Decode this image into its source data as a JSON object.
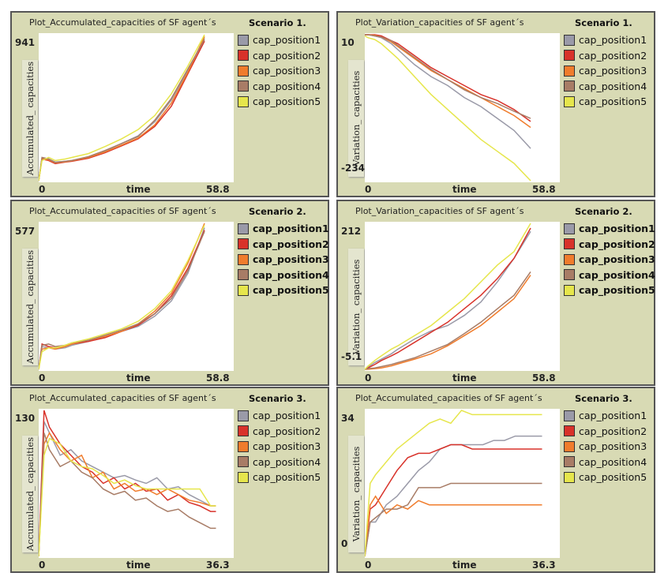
{
  "colors": {
    "cap_position1": "#9a9aa8",
    "cap_position2": "#d8322a",
    "cap_position3": "#f07c2c",
    "cap_position4": "#a87c66",
    "cap_position5": "#e6e64c"
  },
  "chart_data": [
    {
      "type": "line",
      "title": "Plot_Accumulated_capacities of SF agent´s",
      "scenario": "Scenario 1.",
      "xlabel": "time",
      "ylabel": "Accumulated_ capacities",
      "xlim": [
        0,
        58.8
      ],
      "ylim": [
        0,
        941
      ],
      "x_tick_labels": [
        "0",
        "58.8"
      ],
      "y_tick_labels": [
        "941",
        ""
      ],
      "x": [
        0,
        1,
        3,
        5,
        8,
        10,
        15,
        20,
        25,
        30,
        35,
        40,
        45,
        50
      ],
      "series": [
        {
          "name": "cap_position1",
          "values": [
            0,
            150,
            140,
            120,
            125,
            130,
            150,
            190,
            240,
            290,
            380,
            520,
            710,
            920
          ]
        },
        {
          "name": "cap_position2",
          "values": [
            0,
            140,
            130,
            110,
            120,
            125,
            145,
            180,
            225,
            270,
            350,
            480,
            690,
            900
          ]
        },
        {
          "name": "cap_position3",
          "values": [
            0,
            145,
            135,
            115,
            122,
            128,
            150,
            185,
            230,
            275,
            360,
            500,
            700,
            930
          ]
        },
        {
          "name": "cap_position4",
          "values": [
            0,
            150,
            140,
            118,
            125,
            130,
            155,
            195,
            240,
            285,
            390,
            530,
            720,
            910
          ]
        },
        {
          "name": "cap_position5",
          "values": [
            0,
            130,
            150,
            130,
            140,
            150,
            175,
            220,
            270,
            330,
            420,
            560,
            740,
            941
          ]
        }
      ]
    },
    {
      "type": "line",
      "title": "Plot_Variation_capacities of SF agent´s",
      "scenario": "Scenario 1.",
      "xlabel": "time",
      "ylabel": "Variation_ capacities",
      "xlim": [
        0,
        58.8
      ],
      "ylim": [
        -234,
        10
      ],
      "x_tick_labels": [
        "0",
        "58.8"
      ],
      "y_tick_labels": [
        "10",
        "-234"
      ],
      "x": [
        0,
        1,
        3,
        5,
        8,
        10,
        15,
        20,
        25,
        30,
        35,
        40,
        45,
        50
      ],
      "series": [
        {
          "name": "cap_position1",
          "values": [
            10,
            10,
            8,
            5,
            -5,
            -15,
            -40,
            -60,
            -75,
            -95,
            -110,
            -130,
            -150,
            -180
          ]
        },
        {
          "name": "cap_position2",
          "values": [
            10,
            10,
            10,
            8,
            0,
            -5,
            -25,
            -45,
            -60,
            -75,
            -90,
            -100,
            -115,
            -135
          ]
        },
        {
          "name": "cap_position3",
          "values": [
            10,
            10,
            9,
            6,
            -2,
            -10,
            -30,
            -50,
            -65,
            -80,
            -95,
            -110,
            -125,
            -145
          ]
        },
        {
          "name": "cap_position4",
          "values": [
            10,
            10,
            8,
            6,
            0,
            -8,
            -28,
            -48,
            -65,
            -82,
            -95,
            -105,
            -118,
            -130
          ]
        },
        {
          "name": "cap_position5",
          "values": [
            8,
            5,
            2,
            -5,
            -20,
            -30,
            -60,
            -90,
            -115,
            -140,
            -165,
            -185,
            -205,
            -234
          ]
        }
      ]
    },
    {
      "type": "line",
      "title": "Plot_Accumulated_capacities of SF agent´s",
      "scenario": "Scenario 2.",
      "xlabel": "time",
      "ylabel": "Accumulated_ capacities",
      "xlim": [
        0,
        58.8
      ],
      "ylim": [
        0,
        577
      ],
      "x_tick_labels": [
        "0",
        "58.8"
      ],
      "y_tick_labels": [
        "577",
        ""
      ],
      "x": [
        0,
        1,
        3,
        5,
        8,
        10,
        15,
        20,
        25,
        30,
        35,
        40,
        45,
        50
      ],
      "series": [
        {
          "name": "cap_position1",
          "values": [
            0,
            90,
            85,
            80,
            85,
            95,
            110,
            130,
            150,
            170,
            210,
            270,
            380,
            560
          ]
        },
        {
          "name": "cap_position2",
          "values": [
            0,
            100,
            90,
            85,
            95,
            100,
            110,
            125,
            150,
            175,
            220,
            290,
            400,
            550
          ]
        },
        {
          "name": "cap_position3",
          "values": [
            0,
            80,
            85,
            80,
            90,
            100,
            115,
            130,
            150,
            180,
            230,
            300,
            420,
            577
          ]
        },
        {
          "name": "cap_position4",
          "values": [
            0,
            95,
            100,
            90,
            95,
            105,
            115,
            135,
            155,
            180,
            220,
            280,
            390,
            545
          ]
        },
        {
          "name": "cap_position5",
          "values": [
            0,
            70,
            85,
            85,
            95,
            105,
            120,
            140,
            160,
            190,
            240,
            310,
            430,
            570
          ]
        }
      ]
    },
    {
      "type": "line",
      "title": "Plot_Variation_capacities of SF agent´s",
      "scenario": "Scenario 2.",
      "xlabel": "time",
      "ylabel": "Variation_ capacities",
      "xlim": [
        0,
        58.8
      ],
      "ylim": [
        -5.1,
        212
      ],
      "x_tick_labels": [
        "0",
        "58.8"
      ],
      "y_tick_labels": [
        "212",
        "-5.1"
      ],
      "x": [
        0,
        1,
        3,
        5,
        8,
        10,
        15,
        20,
        25,
        30,
        35,
        40,
        45,
        50
      ],
      "series": [
        {
          "name": "cap_position1",
          "values": [
            -5.1,
            -2,
            5,
            10,
            18,
            25,
            40,
            52,
            60,
            75,
            95,
            125,
            160,
            200
          ]
        },
        {
          "name": "cap_position2",
          "values": [
            -5.1,
            -3,
            2,
            8,
            15,
            20,
            35,
            50,
            65,
            85,
            105,
            130,
            160,
            205
          ]
        },
        {
          "name": "cap_position3",
          "values": [
            -5.1,
            -5,
            -4,
            -3,
            0,
            3,
            10,
            18,
            30,
            45,
            60,
            80,
            100,
            135
          ]
        },
        {
          "name": "cap_position4",
          "values": [
            -5.1,
            -4,
            -3,
            -1,
            2,
            5,
            12,
            22,
            32,
            48,
            65,
            85,
            105,
            140
          ]
        },
        {
          "name": "cap_position5",
          "values": [
            -5.1,
            0,
            8,
            15,
            25,
            30,
            45,
            60,
            80,
            100,
            125,
            150,
            170,
            212
          ]
        }
      ]
    },
    {
      "type": "line",
      "title": "Plot_Accumulated_capacities of SF agent´s",
      "scenario": "Scenario 3.",
      "xlabel": "time",
      "ylabel": "Accumulated_ capacities",
      "xlim": [
        0,
        36.3
      ],
      "ylim": [
        0,
        130
      ],
      "x_tick_labels": [
        "0",
        "36.3"
      ],
      "y_tick_labels": [
        "130",
        ""
      ],
      "x": [
        0,
        1,
        2,
        4,
        6,
        8,
        10,
        12,
        14,
        16,
        18,
        20,
        22,
        24,
        26,
        28,
        30,
        32,
        33
      ],
      "series": [
        {
          "name": "cap_position1",
          "values": [
            0,
            120,
            110,
            90,
            95,
            85,
            80,
            75,
            70,
            72,
            68,
            65,
            70,
            60,
            62,
            55,
            50,
            45,
            45
          ]
        },
        {
          "name": "cap_position2",
          "values": [
            0,
            130,
            115,
            100,
            90,
            80,
            75,
            65,
            70,
            60,
            65,
            58,
            60,
            50,
            55,
            48,
            45,
            40,
            40
          ]
        },
        {
          "name": "cap_position3",
          "values": [
            0,
            100,
            110,
            95,
            85,
            90,
            70,
            75,
            60,
            65,
            58,
            60,
            55,
            60,
            55,
            50,
            48,
            45,
            45
          ]
        },
        {
          "name": "cap_position4",
          "values": [
            0,
            110,
            95,
            80,
            85,
            75,
            70,
            60,
            55,
            58,
            50,
            52,
            45,
            40,
            42,
            35,
            30,
            25,
            25
          ]
        },
        {
          "name": "cap_position5",
          "values": [
            0,
            90,
            105,
            100,
            85,
            80,
            78,
            72,
            65,
            68,
            63,
            60,
            60,
            60,
            60,
            60,
            60,
            45,
            45
          ]
        }
      ]
    },
    {
      "type": "line",
      "title": "Plot_Accumulated_capacities of SF agent´s",
      "scenario": "Scenario 3.",
      "xlabel": "time",
      "ylabel": "Variation_ capacities",
      "xlim": [
        0,
        36.3
      ],
      "ylim": [
        0,
        34
      ],
      "x_tick_labels": [
        "0",
        "36.3"
      ],
      "y_tick_labels": [
        "34",
        "0"
      ],
      "x": [
        0,
        1,
        2,
        4,
        6,
        8,
        10,
        12,
        14,
        16,
        18,
        20,
        22,
        24,
        26,
        28,
        30,
        32,
        33
      ],
      "series": [
        {
          "name": "cap_position1",
          "values": [
            0,
            8,
            8,
            12,
            14,
            17,
            20,
            22,
            25,
            26,
            26,
            26,
            26,
            27,
            27,
            28,
            28,
            28,
            28
          ]
        },
        {
          "name": "cap_position2",
          "values": [
            0,
            11,
            12,
            16,
            20,
            23,
            24,
            24,
            25,
            26,
            26,
            25,
            25,
            25,
            25,
            25,
            25,
            25,
            25
          ]
        },
        {
          "name": "cap_position3",
          "values": [
            0,
            12,
            14,
            10,
            12,
            11,
            13,
            12,
            12,
            12,
            12,
            12,
            12,
            12,
            12,
            12,
            12,
            12,
            12
          ]
        },
        {
          "name": "cap_position4",
          "values": [
            0,
            8,
            9,
            11,
            11,
            12,
            16,
            16,
            16,
            17,
            17,
            17,
            17,
            17,
            17,
            17,
            17,
            17,
            17
          ]
        },
        {
          "name": "cap_position5",
          "values": [
            0,
            17,
            19,
            22,
            25,
            27,
            29,
            31,
            32,
            31,
            34,
            33,
            33,
            33,
            33,
            33,
            33,
            33,
            33
          ]
        }
      ]
    }
  ]
}
